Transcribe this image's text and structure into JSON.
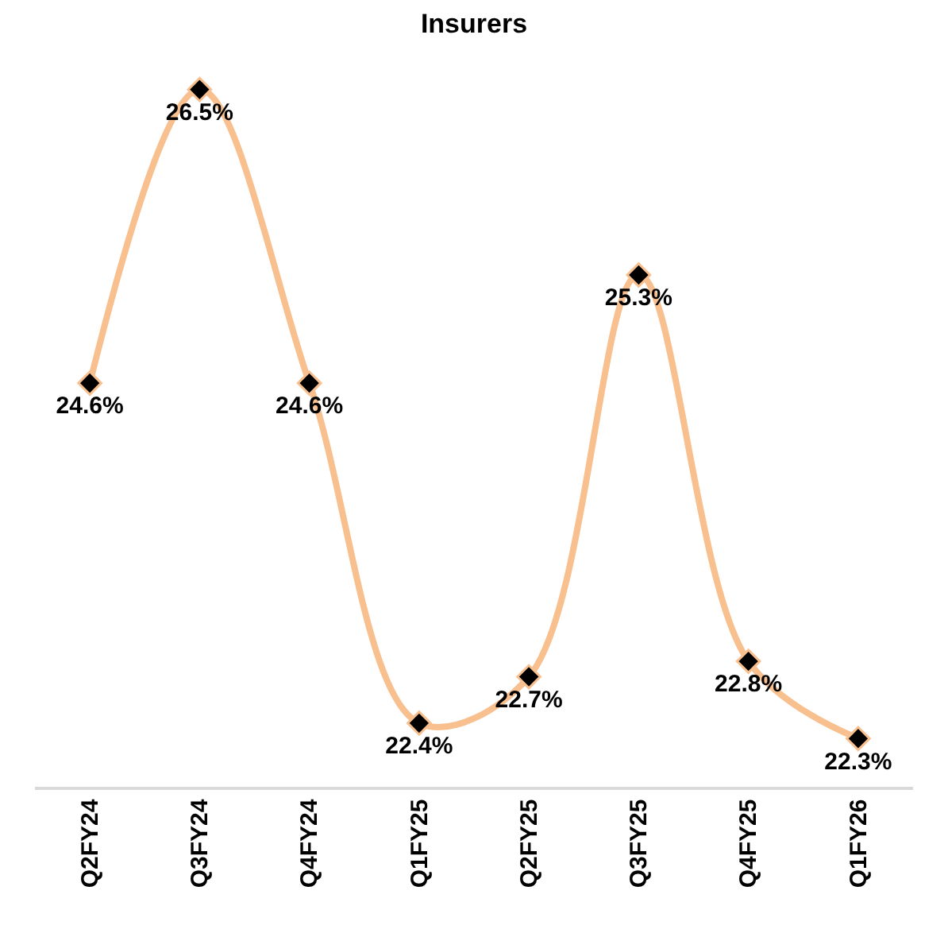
{
  "chart_data": {
    "type": "line",
    "title": "Insurers",
    "categories": [
      "Q2FY24",
      "Q3FY24",
      "Q4FY24",
      "Q1FY25",
      "Q2FY25",
      "Q3FY25",
      "Q4FY25",
      "Q1FY26"
    ],
    "series": [
      {
        "color": "#f9c08f",
        "values": [
          24.6,
          26.5,
          24.6,
          22.4,
          22.7,
          25.3,
          22.8,
          22.3
        ],
        "value_labels": [
          "24.6%",
          "26.5%",
          "24.6%",
          "22.4%",
          "22.7%",
          "25.3%",
          "22.8%",
          "22.3%"
        ]
      }
    ],
    "tick_labels": "x",
    "grid": false,
    "marker": "diamond",
    "line_style": "solid"
  }
}
